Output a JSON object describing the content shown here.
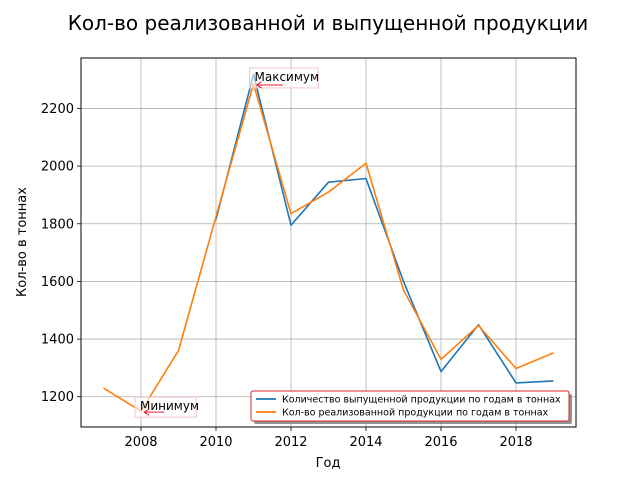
{
  "chart_data": {
    "type": "line",
    "title": "Кол-во реализованной и выпущенной продукции",
    "xlabel": "Год",
    "ylabel": "Кол-во в тоннах",
    "xlim": [
      2006.4,
      2019.6
    ],
    "ylim": [
      1095,
      2375
    ],
    "xticks": [
      2008,
      2010,
      2012,
      2014,
      2016,
      2018
    ],
    "yticks": [
      1200,
      1400,
      1600,
      1800,
      2000,
      2200
    ],
    "grid": true,
    "legend_position": "lower-right",
    "series": [
      {
        "name": "Количество выпущенной продукции по годам в тоннах",
        "color": "#1f77b4",
        "x": [
          2010,
          2011,
          2012,
          2013,
          2014,
          2015,
          2016,
          2017,
          2018,
          2019
        ],
        "y": [
          1815,
          2318,
          1795,
          1944,
          1957,
          1600,
          1287,
          1450,
          1248,
          1255
        ]
      },
      {
        "name": "Кол-во реализованной продукции по годам в тоннах",
        "color": "#ff7f0e",
        "x": [
          2007,
          2008,
          2009,
          2010,
          2011,
          2012,
          2013,
          2014,
          2015,
          2016,
          2017,
          2018,
          2019
        ],
        "y": [
          1230,
          1150,
          1360,
          1825,
          2285,
          1835,
          1910,
          2010,
          1570,
          1330,
          1447,
          1298,
          1352
        ]
      }
    ],
    "annotations": [
      {
        "text": "Максимум",
        "x": 2011,
        "y": 2285
      },
      {
        "text": "Минимум",
        "x": 2008,
        "y": 1150
      }
    ]
  }
}
